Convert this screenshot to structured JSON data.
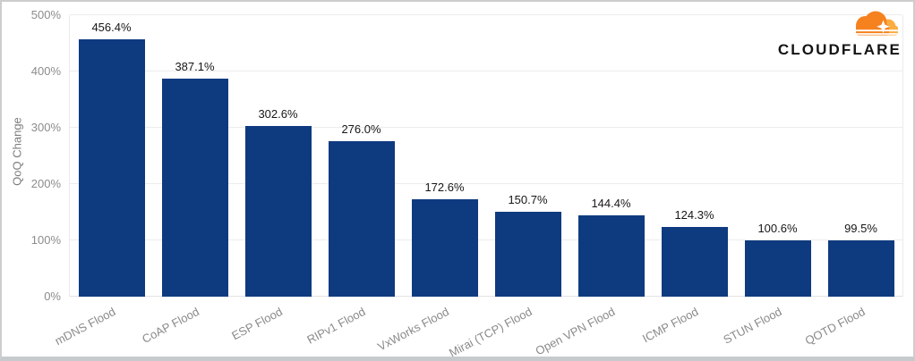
{
  "logo": {
    "wordmark": "CLOUDFLARE",
    "cloud_color": "#F6821F",
    "cloud_light_color": "#FBAD41"
  },
  "chart_data": {
    "type": "bar",
    "categories": [
      "mDNS Flood",
      "CoAP Flood",
      "ESP Flood",
      "RIPv1 Flood",
      "VxWorks Flood",
      "Mirai (TCP) Flood",
      "Open VPN Flood",
      "ICMP Flood",
      "STUN Flood",
      "QOTD Flood"
    ],
    "values": [
      456.4,
      387.1,
      302.6,
      276.0,
      172.6,
      150.7,
      144.4,
      124.3,
      100.6,
      99.5
    ],
    "value_labels": [
      "456.4%",
      "387.1%",
      "302.6%",
      "276.0%",
      "172.6%",
      "150.7%",
      "144.4%",
      "124.3%",
      "100.6%",
      "99.5%"
    ],
    "title": "",
    "xlabel": "",
    "ylabel": "QoQ Change",
    "ylim": [
      0,
      500
    ],
    "ytick_values": [
      0,
      100,
      200,
      300,
      400,
      500
    ],
    "ytick_labels": [
      "0%",
      "100%",
      "200%",
      "300%",
      "400%",
      "500%"
    ],
    "bar_color": "#0E3A80",
    "grid": "horizontal",
    "legend": "none"
  }
}
